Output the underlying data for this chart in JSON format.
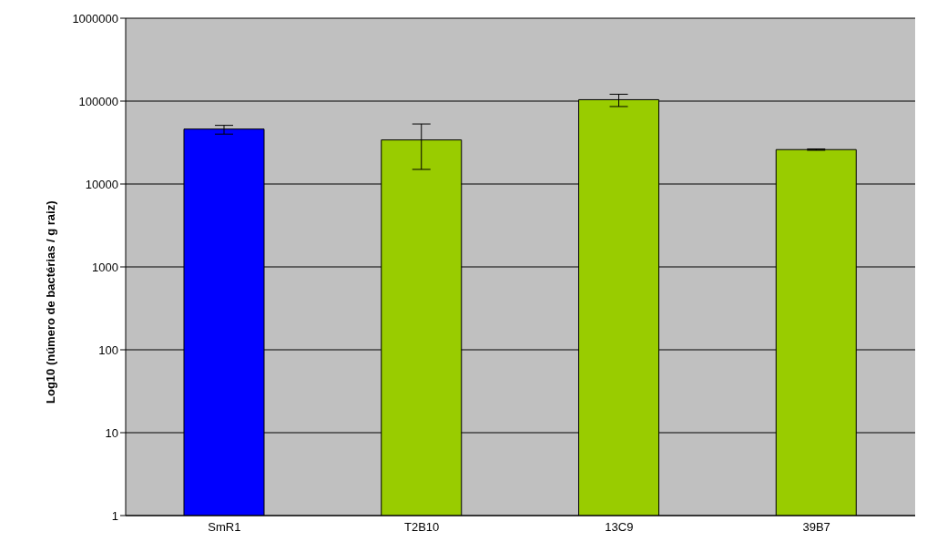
{
  "chart_data": {
    "type": "bar",
    "ylabel": "Log10 (número de bactérias / g raiz)",
    "categories": [
      "SmR1",
      "T2B10",
      "13C9",
      "39B7"
    ],
    "values": [
      46000,
      34000,
      104000,
      26000
    ],
    "colors": [
      "#0000ff",
      "#99cc00",
      "#99cc00",
      "#99cc00"
    ],
    "errors": [
      [
        40000,
        51000
      ],
      [
        15000,
        53000
      ],
      [
        86000,
        121000
      ],
      [
        25500,
        26500
      ]
    ],
    "log": true,
    "ylim": [
      1,
      1000000
    ],
    "yticks": [
      1,
      10,
      100,
      1000,
      10000,
      100000,
      1000000
    ],
    "grid": "y",
    "legend": false
  }
}
